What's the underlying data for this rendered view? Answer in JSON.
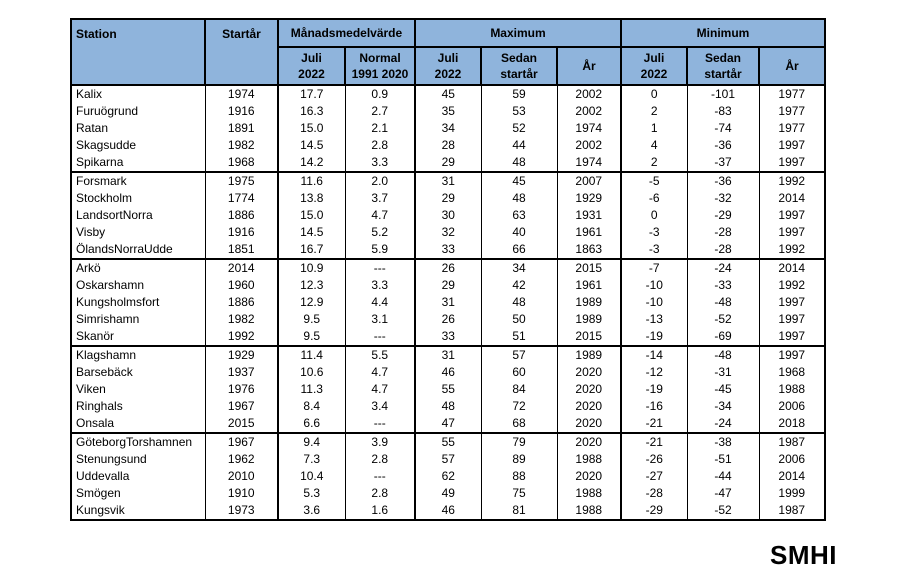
{
  "colors": {
    "header_bg": "#8FB4DC",
    "border": "#000000",
    "text": "#000000",
    "page_bg": "#FFFFFF"
  },
  "logo": {
    "text": "SMHI"
  },
  "table": {
    "header": {
      "station": "Station",
      "start_year": "Startår",
      "sections": [
        {
          "label": "Månadsmedelvärde",
          "sub": [
            "Juli\n2022",
            "Normal\n1991 2020"
          ]
        },
        {
          "label": "Maximum",
          "sub": [
            "Juli\n2022",
            "Sedan\nstartår",
            "År"
          ]
        },
        {
          "label": "Minimum",
          "sub": [
            "Juli\n2022",
            "Sedan\nstartår",
            "År"
          ]
        }
      ]
    },
    "groups": [
      {
        "rows": [
          {
            "station": "Kalix",
            "start_year": "1974",
            "avg_juli": "17.7",
            "normal": "0.9",
            "max_juli": "45",
            "max_since": "59",
            "max_year": "2002",
            "min_juli": "0",
            "min_since": "-101",
            "min_year": "1977"
          },
          {
            "station": "Furuögrund",
            "start_year": "1916",
            "avg_juli": "16.3",
            "normal": "2.7",
            "max_juli": "35",
            "max_since": "53",
            "max_year": "2002",
            "min_juli": "2",
            "min_since": "-83",
            "min_year": "1977"
          },
          {
            "station": "Ratan",
            "start_year": "1891",
            "avg_juli": "15.0",
            "normal": "2.1",
            "max_juli": "34",
            "max_since": "52",
            "max_year": "1974",
            "min_juli": "1",
            "min_since": "-74",
            "min_year": "1977"
          },
          {
            "station": "Skagsudde",
            "start_year": "1982",
            "avg_juli": "14.5",
            "normal": "2.8",
            "max_juli": "28",
            "max_since": "44",
            "max_year": "2002",
            "min_juli": "4",
            "min_since": "-36",
            "min_year": "1997"
          },
          {
            "station": "Spikarna",
            "start_year": "1968",
            "avg_juli": "14.2",
            "normal": "3.3",
            "max_juli": "29",
            "max_since": "48",
            "max_year": "1974",
            "min_juli": "2",
            "min_since": "-37",
            "min_year": "1997"
          }
        ]
      },
      {
        "rows": [
          {
            "station": "Forsmark",
            "start_year": "1975",
            "avg_juli": "11.6",
            "normal": "2.0",
            "max_juli": "31",
            "max_since": "45",
            "max_year": "2007",
            "min_juli": "-5",
            "min_since": "-36",
            "min_year": "1992"
          },
          {
            "station": "Stockholm",
            "start_year": "1774",
            "avg_juli": "13.8",
            "normal": "3.7",
            "max_juli": "29",
            "max_since": "48",
            "max_year": "1929",
            "min_juli": "-6",
            "min_since": "-32",
            "min_year": "2014"
          },
          {
            "station": "LandsortNorra",
            "start_year": "1886",
            "avg_juli": "15.0",
            "normal": "4.7",
            "max_juli": "30",
            "max_since": "63",
            "max_year": "1931",
            "min_juli": "0",
            "min_since": "-29",
            "min_year": "1997"
          },
          {
            "station": "Visby",
            "start_year": "1916",
            "avg_juli": "14.5",
            "normal": "5.2",
            "max_juli": "32",
            "max_since": "40",
            "max_year": "1961",
            "min_juli": "-3",
            "min_since": "-28",
            "min_year": "1997"
          },
          {
            "station": "ÖlandsNorraUdde",
            "start_year": "1851",
            "avg_juli": "16.7",
            "normal": "5.9",
            "max_juli": "33",
            "max_since": "66",
            "max_year": "1863",
            "min_juli": "-3",
            "min_since": "-28",
            "min_year": "1992"
          }
        ]
      },
      {
        "rows": [
          {
            "station": "Arkö",
            "start_year": "2014",
            "avg_juli": "10.9",
            "normal": "---",
            "max_juli": "26",
            "max_since": "34",
            "max_year": "2015",
            "min_juli": "-7",
            "min_since": "-24",
            "min_year": "2014"
          },
          {
            "station": "Oskarshamn",
            "start_year": "1960",
            "avg_juli": "12.3",
            "normal": "3.3",
            "max_juli": "29",
            "max_since": "42",
            "max_year": "1961",
            "min_juli": "-10",
            "min_since": "-33",
            "min_year": "1992"
          },
          {
            "station": "Kungsholmsfort",
            "start_year": "1886",
            "avg_juli": "12.9",
            "normal": "4.4",
            "max_juli": "31",
            "max_since": "48",
            "max_year": "1989",
            "min_juli": "-10",
            "min_since": "-48",
            "min_year": "1997"
          },
          {
            "station": "Simrishamn",
            "start_year": "1982",
            "avg_juli": "9.5",
            "normal": "3.1",
            "max_juli": "26",
            "max_since": "50",
            "max_year": "1989",
            "min_juli": "-13",
            "min_since": "-52",
            "min_year": "1997"
          },
          {
            "station": "Skanör",
            "start_year": "1992",
            "avg_juli": "9.5",
            "normal": "---",
            "max_juli": "33",
            "max_since": "51",
            "max_year": "2015",
            "min_juli": "-19",
            "min_since": "-69",
            "min_year": "1997"
          }
        ]
      },
      {
        "rows": [
          {
            "station": "Klagshamn",
            "start_year": "1929",
            "avg_juli": "11.4",
            "normal": "5.5",
            "max_juli": "31",
            "max_since": "57",
            "max_year": "1989",
            "min_juli": "-14",
            "min_since": "-48",
            "min_year": "1997"
          },
          {
            "station": "Barsebäck",
            "start_year": "1937",
            "avg_juli": "10.6",
            "normal": "4.7",
            "max_juli": "46",
            "max_since": "60",
            "max_year": "2020",
            "min_juli": "-12",
            "min_since": "-31",
            "min_year": "1968"
          },
          {
            "station": "Viken",
            "start_year": "1976",
            "avg_juli": "11.3",
            "normal": "4.7",
            "max_juli": "55",
            "max_since": "84",
            "max_year": "2020",
            "min_juli": "-19",
            "min_since": "-45",
            "min_year": "1988"
          },
          {
            "station": "Ringhals",
            "start_year": "1967",
            "avg_juli": "8.4",
            "normal": "3.4",
            "max_juli": "48",
            "max_since": "72",
            "max_year": "2020",
            "min_juli": "-16",
            "min_since": "-34",
            "min_year": "2006"
          },
          {
            "station": "Onsala",
            "start_year": "2015",
            "avg_juli": "6.6",
            "normal": "---",
            "max_juli": "47",
            "max_since": "68",
            "max_year": "2020",
            "min_juli": "-21",
            "min_since": "-24",
            "min_year": "2018"
          }
        ]
      },
      {
        "rows": [
          {
            "station": "GöteborgTorshamnen",
            "start_year": "1967",
            "avg_juli": "9.4",
            "normal": "3.9",
            "max_juli": "55",
            "max_since": "79",
            "max_year": "2020",
            "min_juli": "-21",
            "min_since": "-38",
            "min_year": "1987"
          },
          {
            "station": "Stenungsund",
            "start_year": "1962",
            "avg_juli": "7.3",
            "normal": "2.8",
            "max_juli": "57",
            "max_since": "89",
            "max_year": "1988",
            "min_juli": "-26",
            "min_since": "-51",
            "min_year": "2006"
          },
          {
            "station": "Uddevalla",
            "start_year": "2010",
            "avg_juli": "10.4",
            "normal": "---",
            "max_juli": "62",
            "max_since": "88",
            "max_year": "2020",
            "min_juli": "-27",
            "min_since": "-44",
            "min_year": "2014"
          },
          {
            "station": "Smögen",
            "start_year": "1910",
            "avg_juli": "5.3",
            "normal": "2.8",
            "max_juli": "49",
            "max_since": "75",
            "max_year": "1988",
            "min_juli": "-28",
            "min_since": "-47",
            "min_year": "1999"
          },
          {
            "station": "Kungsvik",
            "start_year": "1973",
            "avg_juli": "3.6",
            "normal": "1.6",
            "max_juli": "46",
            "max_since": "81",
            "max_year": "1988",
            "min_juli": "-29",
            "min_since": "-52",
            "min_year": "1987"
          }
        ]
      }
    ]
  }
}
